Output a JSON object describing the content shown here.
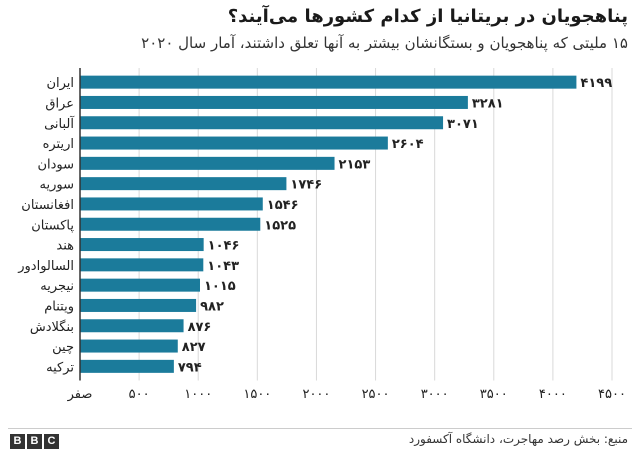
{
  "title": "پناهجویان در بریتانیا از کدام کشورها می‌آیند؟",
  "subtitle": "۱۵ ملیتی که پناهجویان و بستگانشان بیشتر به آنها تعلق داشتند، آمار سال ۲۰۲۰",
  "source": "منبع: بخش رصد مهاجرت، دانشگاه آکسفورد",
  "logo_text": "BBC",
  "colors": {
    "bar": "#1b7b9b",
    "grid": "#d9d9d9",
    "text": "#222222"
  },
  "chart_data": {
    "type": "bar",
    "orientation": "horizontal",
    "title": "پناهجویان در بریتانیا از کدام کشورها می‌آیند؟",
    "subtitle": "۱۵ ملیتی که پناهجویان و بستگانشان بیشتر به آنها تعلق داشتند، آمار سال ۲۰۲۰",
    "categories": [
      "ایران",
      "عراق",
      "آلبانی",
      "اریتره",
      "سودان",
      "سوریه",
      "افغانستان",
      "پاکستان",
      "هند",
      "السالوادور",
      "نیجریه",
      "ویتنام",
      "بنگلادش",
      "چین",
      "ترکیه"
    ],
    "values": [
      4199,
      3281,
      3071,
      2604,
      2153,
      1746,
      1546,
      1525,
      1046,
      1043,
      1015,
      982,
      876,
      827,
      794
    ],
    "value_labels": [
      "۴۱۹۹",
      "۳۲۸۱",
      "۳۰۷۱",
      "۲۶۰۴",
      "۲۱۵۳",
      "۱۷۴۶",
      "۱۵۴۶",
      "۱۵۲۵",
      "۱۰۴۶",
      "۱۰۴۳",
      "۱۰۱۵",
      "۹۸۲",
      "۸۷۶",
      "۸۲۷",
      "۷۹۴"
    ],
    "xlim": [
      0,
      4500
    ],
    "x_ticks": [
      0,
      500,
      1000,
      1500,
      2000,
      2500,
      3000,
      3500,
      4000,
      4500
    ],
    "x_tick_labels": [
      "صفر",
      "۵۰۰",
      "۱۰۰۰",
      "۱۵۰۰",
      "۲۰۰۰",
      "۲۵۰۰",
      "۳۰۰۰",
      "۳۵۰۰",
      "۴۰۰۰",
      "۴۵۰۰"
    ],
    "grid": true,
    "legend": "none"
  }
}
